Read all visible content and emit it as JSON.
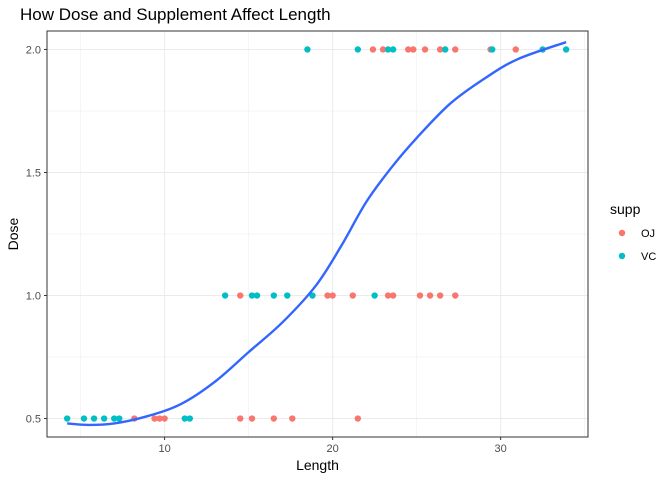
{
  "chart_data": {
    "type": "scatter",
    "title": "How Dose and Supplement Affect Length",
    "xlabel": "Length",
    "ylabel": "Dose",
    "xlim": [
      3.0,
      35.2
    ],
    "ylim": [
      0.425,
      2.075
    ],
    "x_ticks": [
      10,
      20,
      30
    ],
    "y_ticks": [
      0.5,
      1.0,
      1.5,
      2.0
    ],
    "y_tick_labels": [
      "0.5",
      "1.0",
      "1.5",
      "2.0"
    ],
    "grid": true,
    "legend": {
      "title": "supp",
      "placement": "right",
      "entries": [
        {
          "label": "OJ",
          "color": "#F8766D"
        },
        {
          "label": "VC",
          "color": "#00BFC4"
        }
      ]
    },
    "series": [
      {
        "name": "OJ",
        "color": "#F8766D",
        "points": [
          [
            8.2,
            0.5
          ],
          [
            9.4,
            0.5
          ],
          [
            9.7,
            0.5
          ],
          [
            10.0,
            0.5
          ],
          [
            14.5,
            0.5
          ],
          [
            15.2,
            0.5
          ],
          [
            16.5,
            0.5
          ],
          [
            17.6,
            0.5
          ],
          [
            21.5,
            0.5
          ],
          [
            14.5,
            1.0
          ],
          [
            19.7,
            1.0
          ],
          [
            20.0,
            1.0
          ],
          [
            21.2,
            1.0
          ],
          [
            23.3,
            1.0
          ],
          [
            23.6,
            1.0
          ],
          [
            25.2,
            1.0
          ],
          [
            25.8,
            1.0
          ],
          [
            26.4,
            1.0
          ],
          [
            27.3,
            1.0
          ],
          [
            22.4,
            2.0
          ],
          [
            23.0,
            2.0
          ],
          [
            24.5,
            2.0
          ],
          [
            24.8,
            2.0
          ],
          [
            25.5,
            2.0
          ],
          [
            26.4,
            2.0
          ],
          [
            27.3,
            2.0
          ],
          [
            29.4,
            2.0
          ],
          [
            30.9,
            2.0
          ]
        ]
      },
      {
        "name": "VC",
        "color": "#00BFC4",
        "points": [
          [
            4.2,
            0.5
          ],
          [
            5.2,
            0.5
          ],
          [
            5.8,
            0.5
          ],
          [
            6.4,
            0.5
          ],
          [
            7.0,
            0.5
          ],
          [
            7.3,
            0.5
          ],
          [
            11.2,
            0.5
          ],
          [
            11.5,
            0.5
          ],
          [
            13.6,
            1.0
          ],
          [
            15.2,
            1.0
          ],
          [
            15.5,
            1.0
          ],
          [
            16.5,
            1.0
          ],
          [
            17.3,
            1.0
          ],
          [
            18.8,
            1.0
          ],
          [
            22.5,
            1.0
          ],
          [
            18.5,
            2.0
          ],
          [
            21.5,
            2.0
          ],
          [
            23.3,
            2.0
          ],
          [
            23.6,
            2.0
          ],
          [
            26.7,
            2.0
          ],
          [
            29.5,
            2.0
          ],
          [
            32.5,
            2.0
          ],
          [
            33.9,
            2.0
          ]
        ]
      }
    ],
    "trend_line": {
      "color": "#3366FF",
      "points": [
        [
          4.2,
          0.48
        ],
        [
          5.5,
          0.474
        ],
        [
          7.0,
          0.48
        ],
        [
          9.0,
          0.51
        ],
        [
          11.0,
          0.56
        ],
        [
          13.0,
          0.65
        ],
        [
          15.0,
          0.77
        ],
        [
          17.0,
          0.89
        ],
        [
          19.0,
          1.04
        ],
        [
          20.5,
          1.2
        ],
        [
          22.0,
          1.38
        ],
        [
          23.5,
          1.52
        ],
        [
          25.0,
          1.64
        ],
        [
          27.0,
          1.78
        ],
        [
          29.0,
          1.88
        ],
        [
          31.0,
          1.96
        ],
        [
          33.9,
          2.03
        ]
      ]
    }
  }
}
